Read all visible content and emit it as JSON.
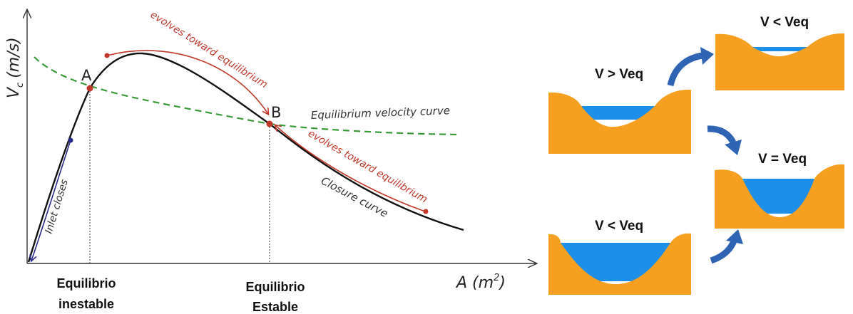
{
  "graph": {
    "y_axis_label": "V",
    "y_axis_sub": "c",
    "y_axis_unit": "(m/s)",
    "x_axis_label": "A (m",
    "x_axis_sup": "2",
    "x_axis_close": ")",
    "point_a": "A",
    "point_b": "B",
    "equilibrium_curve_label": "Equilibrium velocity curve",
    "closure_curve_label": "Closure curve",
    "evolves_top": "evolves toward equilibrium",
    "evolves_bottom": "evolves toward equilibrium",
    "inlet_closes": "Inlet closes",
    "unstable_line1": "Equilibrio",
    "unstable_line2": "inestable",
    "stable_line1": "Equilibrio",
    "stable_line2": "Estable"
  },
  "panels": {
    "panel_left_top": "V > Veq",
    "panel_left_bottom": "V < Veq",
    "panel_right_top": "V < Veq",
    "panel_right_middle": "V = Veq"
  },
  "colors": {
    "closure_curve": "#111111",
    "equilibrium_curve": "#3a9a3a",
    "red_arrow": "#c0392b",
    "red_point": "#c0392b",
    "blue_arrow": "#2a2a8a",
    "sediment": "#f5a020",
    "water": "#1e8fe8",
    "transition_arrow": "#2f64b4"
  }
}
